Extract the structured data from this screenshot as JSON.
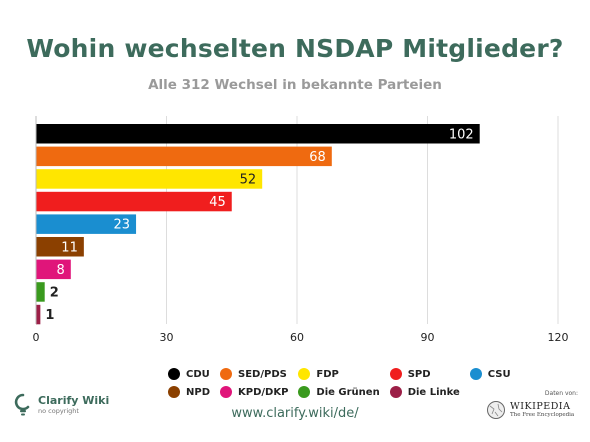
{
  "title": "Wohin wechselten NSDAP Mitglieder?",
  "subtitle": "Alle 312 Wechsel in bekannte Parteien",
  "chart_data": {
    "type": "bar",
    "orientation": "horizontal",
    "categories": [
      "CDU",
      "SED/PDS",
      "FDP",
      "SPD",
      "CSU",
      "NPD",
      "KPD/DKP",
      "Die Grünen",
      "Die Linke"
    ],
    "values": [
      102,
      68,
      52,
      45,
      23,
      11,
      8,
      2,
      1
    ],
    "colors": [
      "#000000",
      "#ef6a10",
      "#ffe600",
      "#f01e1e",
      "#1a8ed0",
      "#8b4000",
      "#e0157a",
      "#3a9a1e",
      "#9c1f47"
    ],
    "label_colors": [
      "#ffffff",
      "#ffffff",
      "#222222",
      "#ffffff",
      "#ffffff",
      "#ffffff",
      "#ffffff",
      "#222222",
      "#222222"
    ],
    "xlim": [
      0,
      120
    ],
    "xticks": [
      0,
      30,
      60,
      90,
      120
    ],
    "grid": true,
    "legend_position": "bottom"
  },
  "legend": [
    {
      "label": "CDU",
      "color": "#000000"
    },
    {
      "label": "SED/PDS",
      "color": "#ef6a10"
    },
    {
      "label": "FDP",
      "color": "#ffe600"
    },
    {
      "label": "SPD",
      "color": "#f01e1e"
    },
    {
      "label": "CSU",
      "color": "#1a8ed0"
    },
    {
      "label": "NPD",
      "color": "#8b4000"
    },
    {
      "label": "KPD/DKP",
      "color": "#e0157a"
    },
    {
      "label": "Die Grünen",
      "color": "#3a9a1e"
    },
    {
      "label": "Die Linke",
      "color": "#9c1f47"
    }
  ],
  "footer": {
    "brand_name": "Clarify Wiki",
    "brand_tagline": "no copyright",
    "url": "www.clarify.wiki/de/",
    "source_label": "Daten von:",
    "source_name": "WIKIPEDIA",
    "source_tagline": "The Free Encyclopedia"
  }
}
